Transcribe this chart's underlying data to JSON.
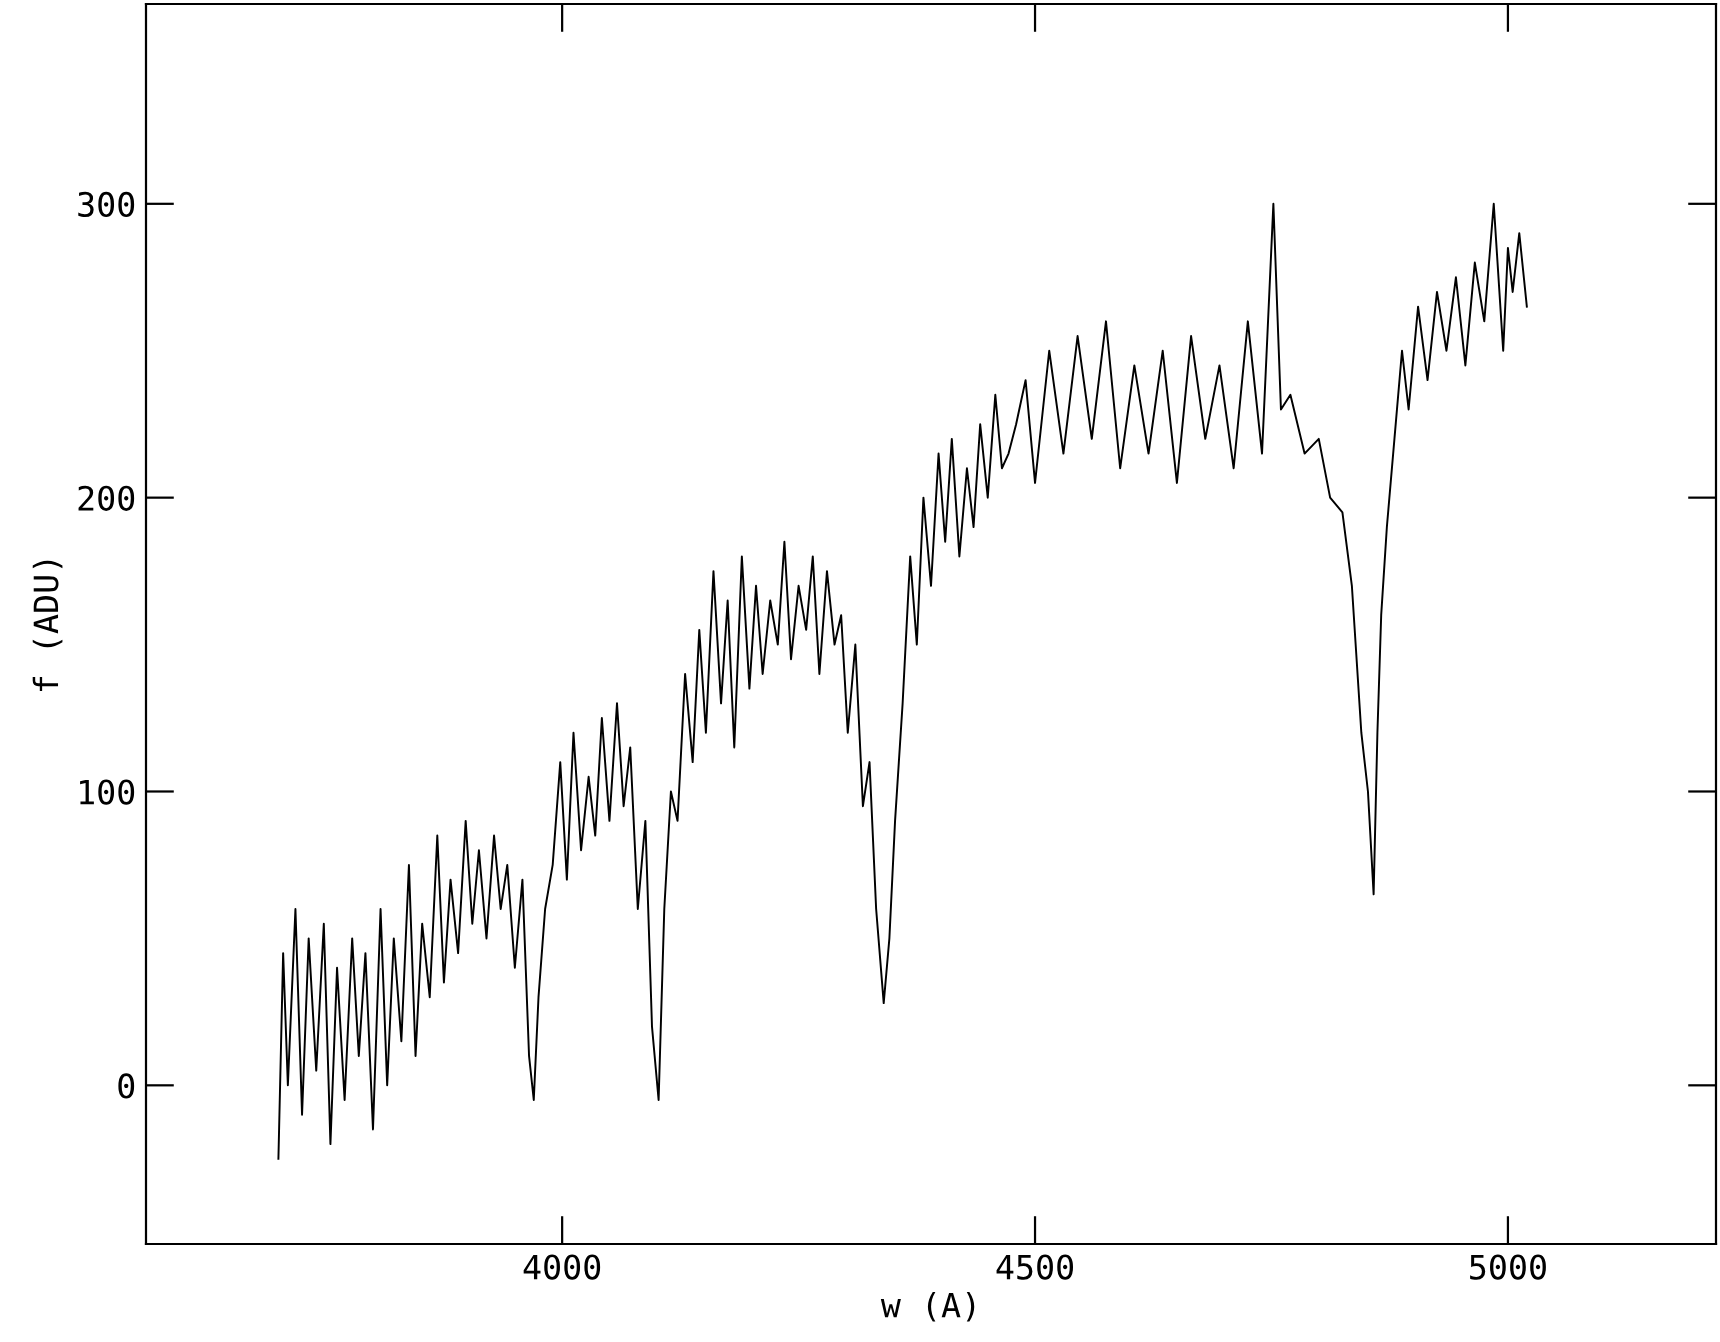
{
  "chart_data": {
    "type": "line",
    "xlabel": "w (A)",
    "ylabel": "f (ADU)",
    "x": [
      3700,
      3705,
      3710,
      3718,
      3725,
      3732,
      3740,
      3748,
      3755,
      3762,
      3770,
      3778,
      3785,
      3792,
      3800,
      3808,
      3815,
      3822,
      3830,
      3838,
      3845,
      3852,
      3860,
      3868,
      3875,
      3882,
      3890,
      3898,
      3905,
      3912,
      3920,
      3928,
      3935,
      3942,
      3950,
      3958,
      3965,
      3970,
      3975,
      3982,
      3990,
      3998,
      4005,
      4012,
      4020,
      4028,
      4035,
      4042,
      4050,
      4058,
      4065,
      4072,
      4080,
      4088,
      4095,
      4102,
      4108,
      4115,
      4122,
      4130,
      4138,
      4145,
      4152,
      4160,
      4168,
      4175,
      4182,
      4190,
      4198,
      4205,
      4212,
      4220,
      4228,
      4235,
      4242,
      4250,
      4258,
      4265,
      4272,
      4280,
      4288,
      4295,
      4302,
      4310,
      4318,
      4325,
      4332,
      4340,
      4346,
      4352,
      4360,
      4368,
      4375,
      4382,
      4390,
      4398,
      4405,
      4412,
      4420,
      4428,
      4435,
      4442,
      4450,
      4458,
      4465,
      4472,
      4480,
      4490,
      4500,
      4515,
      4530,
      4545,
      4560,
      4575,
      4590,
      4605,
      4620,
      4635,
      4650,
      4665,
      4680,
      4695,
      4710,
      4725,
      4740,
      4752,
      4760,
      4770,
      4785,
      4800,
      4812,
      4825,
      4835,
      4845,
      4852,
      4858,
      4862,
      4866,
      4872,
      4880,
      4888,
      4895,
      4905,
      4915,
      4925,
      4935,
      4945,
      4955,
      4965,
      4975,
      4985,
      4995,
      5000,
      5005,
      5012,
      5020
    ],
    "series": [
      {
        "color": "#000000",
        "values": [
          -25,
          45,
          0,
          60,
          -10,
          50,
          5,
          55,
          -20,
          40,
          -5,
          50,
          10,
          45,
          -15,
          60,
          0,
          50,
          15,
          75,
          10,
          55,
          30,
          85,
          35,
          70,
          45,
          90,
          55,
          80,
          50,
          85,
          60,
          75,
          40,
          70,
          10,
          -5,
          30,
          60,
          75,
          110,
          70,
          120,
          80,
          105,
          85,
          125,
          90,
          130,
          95,
          115,
          60,
          90,
          20,
          -5,
          60,
          100,
          90,
          140,
          110,
          155,
          120,
          175,
          130,
          165,
          115,
          180,
          135,
          170,
          140,
          165,
          150,
          185,
          145,
          170,
          155,
          180,
          140,
          175,
          150,
          160,
          120,
          150,
          95,
          110,
          60,
          28,
          50,
          90,
          130,
          180,
          150,
          200,
          170,
          215,
          185,
          220,
          180,
          210,
          190,
          225,
          200,
          235,
          210,
          215,
          225,
          240,
          205,
          250,
          215,
          255,
          220,
          260,
          210,
          245,
          215,
          250,
          205,
          255,
          220,
          245,
          210,
          260,
          215,
          300,
          230,
          235,
          215,
          220,
          200,
          195,
          170,
          120,
          100,
          65,
          120,
          160,
          190,
          220,
          250,
          230,
          265,
          240,
          270,
          250,
          275,
          245,
          280,
          260,
          300,
          250,
          285,
          270,
          290,
          265
        ]
      }
    ],
    "xlim": [
      3560,
      5220
    ],
    "ylim": [
      -54,
      368
    ],
    "xticks": [
      4000,
      4500,
      5000
    ],
    "yticks": [
      0,
      100,
      200,
      300
    ],
    "grid": false,
    "legend": false,
    "marker": "none",
    "line_style": "solid"
  }
}
